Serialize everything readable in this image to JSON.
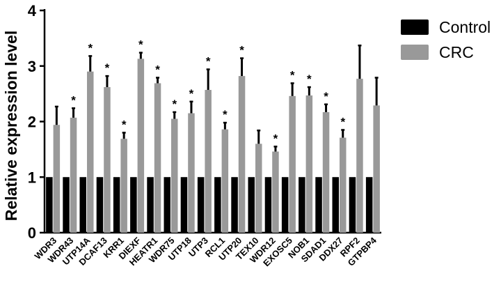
{
  "chart_data": {
    "type": "bar",
    "ylabel": "Relative expression level",
    "xlabel": "",
    "title": "",
    "ylim": [
      0,
      4
    ],
    "yticks": [
      0,
      1,
      2,
      3,
      4
    ],
    "grid": false,
    "legend_placement": "top-right",
    "categories": [
      "WDR3",
      "WDR43",
      "UTP14A",
      "DCAF13",
      "KRR1",
      "DIEXF",
      "HEATR1",
      "WDR75",
      "UTP18",
      "UTP3",
      "RCL1",
      "UTP20",
      "TEX10",
      "WDR12",
      "EXOSC5",
      "NOB1",
      "SDAD1",
      "DDX27",
      "RPF2",
      "GTPBP4"
    ],
    "series": [
      {
        "name": "Control",
        "color": "#000000",
        "values": [
          1,
          1,
          1,
          1,
          1,
          1,
          1,
          1,
          1,
          1,
          1,
          1,
          1,
          1,
          1,
          1,
          1,
          1,
          1,
          1
        ]
      },
      {
        "name": "CRC",
        "color": "#999999",
        "values": [
          1.94,
          2.07,
          2.9,
          2.62,
          1.69,
          3.13,
          2.69,
          2.05,
          2.15,
          2.57,
          1.86,
          2.82,
          1.6,
          1.46,
          2.46,
          2.47,
          2.17,
          1.71,
          2.77,
          2.29
        ],
        "error_upper": [
          2.27,
          2.24,
          3.18,
          2.82,
          1.8,
          3.24,
          2.79,
          2.17,
          2.36,
          2.94,
          1.98,
          3.14,
          1.84,
          1.55,
          2.69,
          2.62,
          2.31,
          1.85,
          3.37,
          2.79
        ],
        "significant": [
          false,
          true,
          true,
          true,
          true,
          true,
          true,
          true,
          true,
          true,
          true,
          true,
          false,
          true,
          true,
          true,
          true,
          true,
          false,
          false
        ]
      }
    ],
    "significance_marker": "*"
  }
}
